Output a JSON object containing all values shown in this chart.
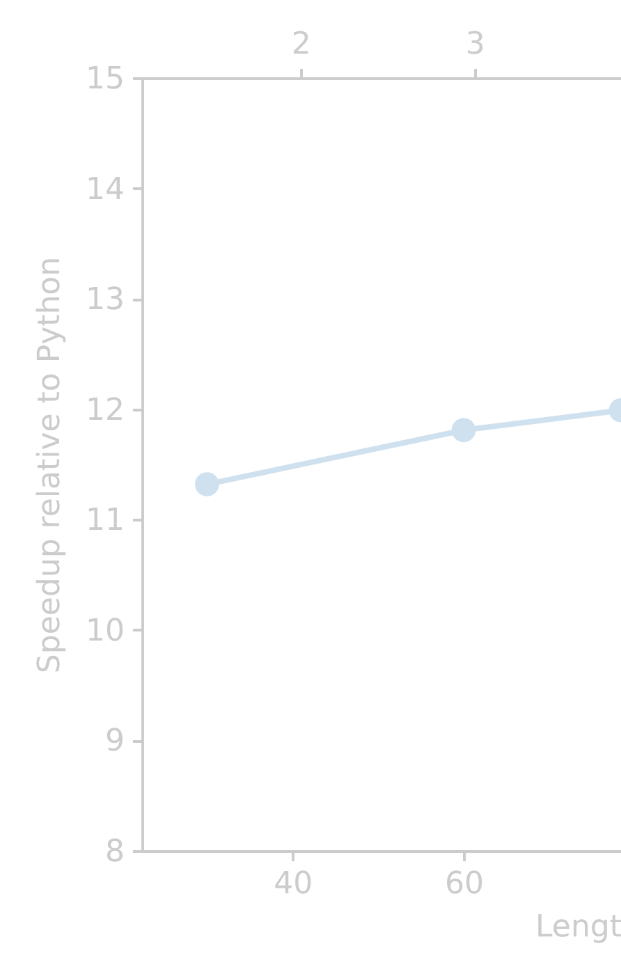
{
  "chart_data": {
    "type": "line",
    "xlabel": "Lengt",
    "ylabel": "Speedup relative to Python",
    "x": [
      30,
      60,
      78.4
    ],
    "series": [
      {
        "color": "#cfe0ee",
        "values": [
          11.32,
          11.81,
          11.99
        ]
      }
    ],
    "xlim": [
      22.4,
      78.4
    ],
    "xticks": [
      40,
      60
    ],
    "x2lim": [
      1.09,
      3.84
    ],
    "x2ticks": [
      2,
      3
    ],
    "ylim": [
      8,
      15
    ],
    "yticks": [
      8,
      9,
      10,
      11,
      12,
      13,
      14,
      15
    ],
    "marker": "circle",
    "line_style": "solid",
    "grid": false
  }
}
